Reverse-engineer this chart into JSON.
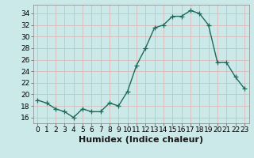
{
  "x": [
    0,
    1,
    2,
    3,
    4,
    5,
    6,
    7,
    8,
    9,
    10,
    11,
    12,
    13,
    14,
    15,
    16,
    17,
    18,
    19,
    20,
    21,
    22,
    23
  ],
  "y": [
    19,
    18.5,
    17.5,
    17,
    16,
    17.5,
    17,
    17,
    18.5,
    18,
    20.5,
    25,
    28,
    31.5,
    32,
    33.5,
    33.5,
    34.5,
    34,
    32,
    25.5,
    25.5,
    23,
    21
  ],
  "line_color": "#1a6b5a",
  "marker": "+",
  "marker_size": 4,
  "bg_color": "#cce9e9",
  "grid_color": "#b0d0d0",
  "xlabel": "Humidex (Indice chaleur)",
  "xlim": [
    -0.5,
    23.5
  ],
  "ylim": [
    15,
    35.5
  ],
  "yticks": [
    16,
    18,
    20,
    22,
    24,
    26,
    28,
    30,
    32,
    34
  ],
  "xticks": [
    0,
    1,
    2,
    3,
    4,
    5,
    6,
    7,
    8,
    9,
    10,
    11,
    12,
    13,
    14,
    15,
    16,
    17,
    18,
    19,
    20,
    21,
    22,
    23
  ],
  "tick_fontsize": 6.5,
  "xlabel_fontsize": 8,
  "line_width": 1.0
}
